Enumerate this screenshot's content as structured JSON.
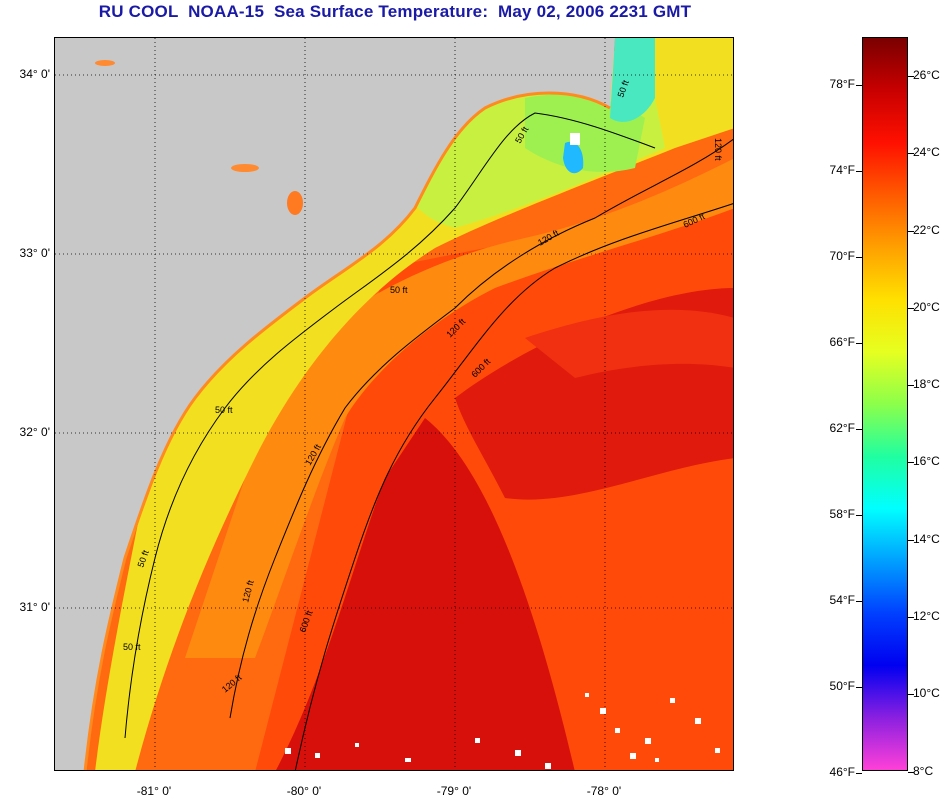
{
  "header": {
    "title": "RU COOL  NOAA-15  Sea Surface Temperature:  May 02, 2006 2231 GMT"
  },
  "map": {
    "lat_labels": [
      "34° 0'",
      "33° 0'",
      "32° 0'",
      "31° 0'"
    ],
    "lon_labels": [
      "-81° 0'",
      "-80° 0'",
      "-79° 0'",
      "-78° 0'"
    ],
    "depth_contour_labels": [
      "50 ft",
      "50 ft",
      "50 ft",
      "50 ft",
      "50 ft",
      "50 ft",
      "120 ft",
      "120 ft",
      "120 ft",
      "120 ft",
      "120 ft",
      "120 ft",
      "600 ft",
      "600 ft",
      "600 ft"
    ],
    "colors": {
      "land": "#c8c8c8",
      "gulf_stream": "#d8100b",
      "warm_shelf": "#ff5a10",
      "mid_shelf": "#ff9a10",
      "cool_shelf": "#f5e21a",
      "cold_bay": "#9ef050",
      "cloud": "#ffffff"
    }
  },
  "colorbar": {
    "fahrenheit_labels": [
      "78°F",
      "74°F",
      "70°F",
      "66°F",
      "62°F",
      "58°F",
      "54°F",
      "50°F",
      "46°F"
    ],
    "celsius_labels": [
      "26°C",
      "24°C",
      "22°C",
      "20°C",
      "18°C",
      "16°C",
      "14°C",
      "12°C",
      "10°C",
      "8°C"
    ],
    "gradient_stops": [
      "#7a0000",
      "#c80000",
      "#ff1000",
      "#ff5a00",
      "#ffa000",
      "#ffe000",
      "#e6ff20",
      "#8cff4a",
      "#20ffa0",
      "#00ffff",
      "#00a0ff",
      "#0040ff",
      "#0000f0",
      "#8a20e0",
      "#ff40d8"
    ]
  }
}
